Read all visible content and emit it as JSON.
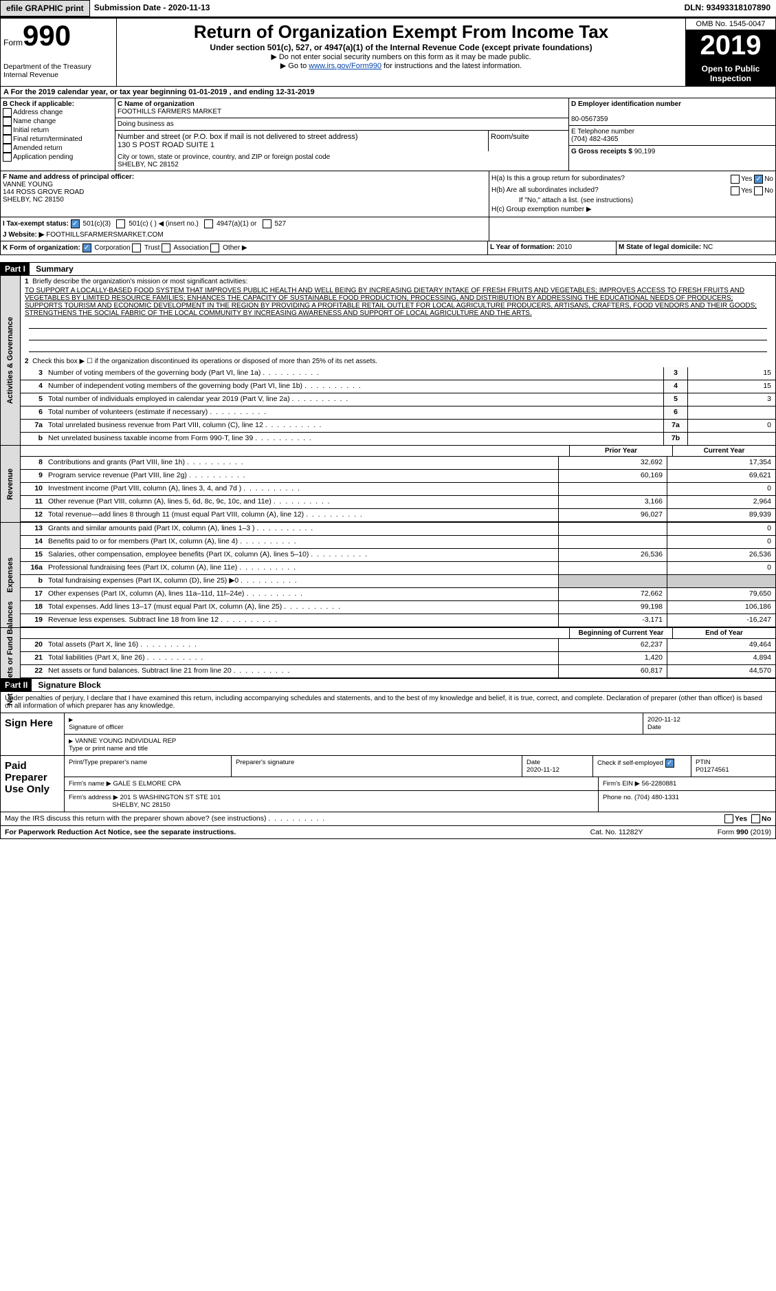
{
  "top": {
    "efile": "efile GRAPHIC print",
    "subdate_label": "Submission Date - ",
    "subdate": "2020-11-13",
    "dln_label": "DLN: ",
    "dln": "93493318107890"
  },
  "header": {
    "form_small": "Form",
    "form_big": "990",
    "dept": "Department of the Treasury",
    "irs": "Internal Revenue",
    "title": "Return of Organization Exempt From Income Tax",
    "sub": "Under section 501(c), 527, or 4947(a)(1) of the Internal Revenue Code (except private foundations)",
    "note1": "▶ Do not enter social security numbers on this form as it may be made public.",
    "note2_pre": "▶ Go to ",
    "note2_link": "www.irs.gov/Form990",
    "note2_post": " for instructions and the latest information.",
    "omb": "OMB No. 1545-0047",
    "year": "2019",
    "open": "Open to Public Inspection"
  },
  "A": {
    "text": "A For the 2019 calendar year, or tax year beginning 01-01-2019   , and ending 12-31-2019"
  },
  "B": {
    "label": "B Check if applicable:",
    "items": [
      "Address change",
      "Name change",
      "Initial return",
      "Final return/terminated",
      "Amended return",
      "Application pending"
    ]
  },
  "C": {
    "name_lbl": "C Name of organization",
    "name": "FOOTHILLS FARMERS MARKET",
    "dba_lbl": "Doing business as",
    "addr_lbl": "Number and street (or P.O. box if mail is not delivered to street address)",
    "addr": "130 S POST ROAD SUITE 1",
    "room_lbl": "Room/suite",
    "city_lbl": "City or town, state or province, country, and ZIP or foreign postal code",
    "city": "SHELBY, NC  28152"
  },
  "D": {
    "lbl": "D Employer identification number",
    "val": "80-0567359"
  },
  "E": {
    "lbl": "E Telephone number",
    "val": "(704) 482-4365"
  },
  "G": {
    "lbl": "G Gross receipts $",
    "val": "90,199"
  },
  "F": {
    "lbl": "F  Name and address of principal officer:",
    "name": "VANNE YOUNG",
    "addr": "144 ROSS GROVE ROAD",
    "city": "SHELBY, NC  28150"
  },
  "H": {
    "a": "H(a)  Is this a group return for subordinates?",
    "b": "H(b)  Are all subordinates included?",
    "b_note": "If \"No,\" attach a list. (see instructions)",
    "c": "H(c)  Group exemption number ▶",
    "yes": "Yes",
    "no": "No"
  },
  "I": {
    "lbl": "I  Tax-exempt status:",
    "o1": "501(c)(3)",
    "o2": "501(c) (  ) ◀ (insert no.)",
    "o3": "4947(a)(1) or",
    "o4": "527"
  },
  "J": {
    "lbl": "J  Website: ▶",
    "val": "FOOTHILLSFARMERSMARKET.COM"
  },
  "K": {
    "lbl": "K Form of organization:",
    "o1": "Corporation",
    "o2": "Trust",
    "o3": "Association",
    "o4": "Other ▶"
  },
  "L": {
    "lbl": "L Year of formation:",
    "val": "2010"
  },
  "M": {
    "lbl": "M State of legal domicile:",
    "val": "NC"
  },
  "part1": {
    "hdr": "Part I",
    "title": "Summary"
  },
  "ag": {
    "label": "Activities & Governance",
    "l1": "Briefly describe the organization's mission or most significant activities:",
    "mission": "TO SUPPORT A LOCALLY-BASED FOOD SYSTEM THAT IMPROVES PUBLIC HEALTH AND WELL BEING BY INCREASING DIETARY INTAKE OF FRESH FRUITS AND VEGETABLES; IMPROVES ACCESS TO FRESH FRUITS AND VEGETABLES BY LIMITED RESOURCE FAMILIES; ENHANCES THE CAPACITY OF SUSTAINABLE FOOD PRODUCTION, PROCESSING, AND DISTRIBUTION BY ADDRESSING THE EDUCATIONAL NEEDS OF PRODUCERS; SUPPORTS TOURISM AND ECONOMIC DEVELOPMENT IN THE REGION BY PROVIDING A PROFITABLE RETAIL OUTLET FOR LOCAL AGRICULTURE PRODUCERS, ARTISANS, CRAFTERS, FOOD VENDORS AND THEIR GOODS; STRENGTHENS THE SOCIAL FABRIC OF THE LOCAL COMMUNITY BY INCREASING AWARENESS AND SUPPORT OF LOCAL AGRICULTURE AND THE ARTS.",
    "l2": "Check this box ▶ ☐ if the organization discontinued its operations or disposed of more than 25% of its net assets.",
    "rows": [
      {
        "n": "3",
        "d": "Number of voting members of the governing body (Part VI, line 1a)",
        "b": "3",
        "v": "15"
      },
      {
        "n": "4",
        "d": "Number of independent voting members of the governing body (Part VI, line 1b)",
        "b": "4",
        "v": "15"
      },
      {
        "n": "5",
        "d": "Total number of individuals employed in calendar year 2019 (Part V, line 2a)",
        "b": "5",
        "v": "3"
      },
      {
        "n": "6",
        "d": "Total number of volunteers (estimate if necessary)",
        "b": "6",
        "v": ""
      },
      {
        "n": "7a",
        "d": "Total unrelated business revenue from Part VIII, column (C), line 12",
        "b": "7a",
        "v": "0"
      },
      {
        "n": "b",
        "d": "Net unrelated business taxable income from Form 990-T, line 39",
        "b": "7b",
        "v": ""
      }
    ]
  },
  "rev": {
    "label": "Revenue",
    "py": "Prior Year",
    "cy": "Current Year",
    "rows": [
      {
        "n": "8",
        "d": "Contributions and grants (Part VIII, line 1h)",
        "p": "32,692",
        "c": "17,354"
      },
      {
        "n": "9",
        "d": "Program service revenue (Part VIII, line 2g)",
        "p": "60,169",
        "c": "69,621"
      },
      {
        "n": "10",
        "d": "Investment income (Part VIII, column (A), lines 3, 4, and 7d )",
        "p": "",
        "c": "0"
      },
      {
        "n": "11",
        "d": "Other revenue (Part VIII, column (A), lines 5, 6d, 8c, 9c, 10c, and 11e)",
        "p": "3,166",
        "c": "2,964"
      },
      {
        "n": "12",
        "d": "Total revenue—add lines 8 through 11 (must equal Part VIII, column (A), line 12)",
        "p": "96,027",
        "c": "89,939"
      }
    ]
  },
  "exp": {
    "label": "Expenses",
    "rows": [
      {
        "n": "13",
        "d": "Grants and similar amounts paid (Part IX, column (A), lines 1–3 )",
        "p": "",
        "c": "0"
      },
      {
        "n": "14",
        "d": "Benefits paid to or for members (Part IX, column (A), line 4)",
        "p": "",
        "c": "0"
      },
      {
        "n": "15",
        "d": "Salaries, other compensation, employee benefits (Part IX, column (A), lines 5–10)",
        "p": "26,536",
        "c": "26,536"
      },
      {
        "n": "16a",
        "d": "Professional fundraising fees (Part IX, column (A), line 11e)",
        "p": "",
        "c": "0"
      },
      {
        "n": "b",
        "d": "Total fundraising expenses (Part IX, column (D), line 25) ▶0",
        "p": "shade",
        "c": "shade"
      },
      {
        "n": "17",
        "d": "Other expenses (Part IX, column (A), lines 11a–11d, 11f–24e)",
        "p": "72,662",
        "c": "79,650"
      },
      {
        "n": "18",
        "d": "Total expenses. Add lines 13–17 (must equal Part IX, column (A), line 25)",
        "p": "99,198",
        "c": "106,186"
      },
      {
        "n": "19",
        "d": "Revenue less expenses. Subtract line 18 from line 12",
        "p": "-3,171",
        "c": "-16,247"
      }
    ]
  },
  "na": {
    "label": "Net Assets or Fund Balances",
    "by": "Beginning of Current Year",
    "ey": "End of Year",
    "rows": [
      {
        "n": "20",
        "d": "Total assets (Part X, line 16)",
        "p": "62,237",
        "c": "49,464"
      },
      {
        "n": "21",
        "d": "Total liabilities (Part X, line 26)",
        "p": "1,420",
        "c": "4,894"
      },
      {
        "n": "22",
        "d": "Net assets or fund balances. Subtract line 21 from line 20",
        "p": "60,817",
        "c": "44,570"
      }
    ]
  },
  "part2": {
    "hdr": "Part II",
    "title": "Signature Block"
  },
  "sig": {
    "decl": "Under penalties of perjury, I declare that I have examined this return, including accompanying schedules and statements, and to the best of my knowledge and belief, it is true, correct, and complete. Declaration of preparer (other than officer) is based on all information of which preparer has any knowledge.",
    "sign_here": "Sign Here",
    "sig_officer": "Signature of officer",
    "date": "2020-11-12",
    "date_lbl": "Date",
    "name": "VANNE YOUNG  INDIVIDUAL REP",
    "name_lbl": "Type or print name and title",
    "paid": "Paid Preparer Use Only",
    "p_name_lbl": "Print/Type preparer's name",
    "p_sig_lbl": "Preparer's signature",
    "p_date_lbl": "Date",
    "p_date": "2020-11-12",
    "p_check": "Check           if self-employed",
    "ptin_lbl": "PTIN",
    "ptin": "P01274561",
    "firm_name_lbl": "Firm's name    ▶",
    "firm_name": "GALE S ELMORE CPA",
    "firm_ein_lbl": "Firm's EIN ▶",
    "firm_ein": "56-2280881",
    "firm_addr_lbl": "Firm's address ▶",
    "firm_addr": "201 S WASHINGTON ST STE 101",
    "firm_city": "SHELBY, NC  28150",
    "phone_lbl": "Phone no.",
    "phone": "(704) 480-1331",
    "discuss": "May the IRS discuss this return with the preparer shown above? (see instructions)"
  },
  "foot": {
    "l": "For Paperwork Reduction Act Notice, see the separate instructions.",
    "m": "Cat. No. 11282Y",
    "r": "Form 990 (2019)"
  }
}
